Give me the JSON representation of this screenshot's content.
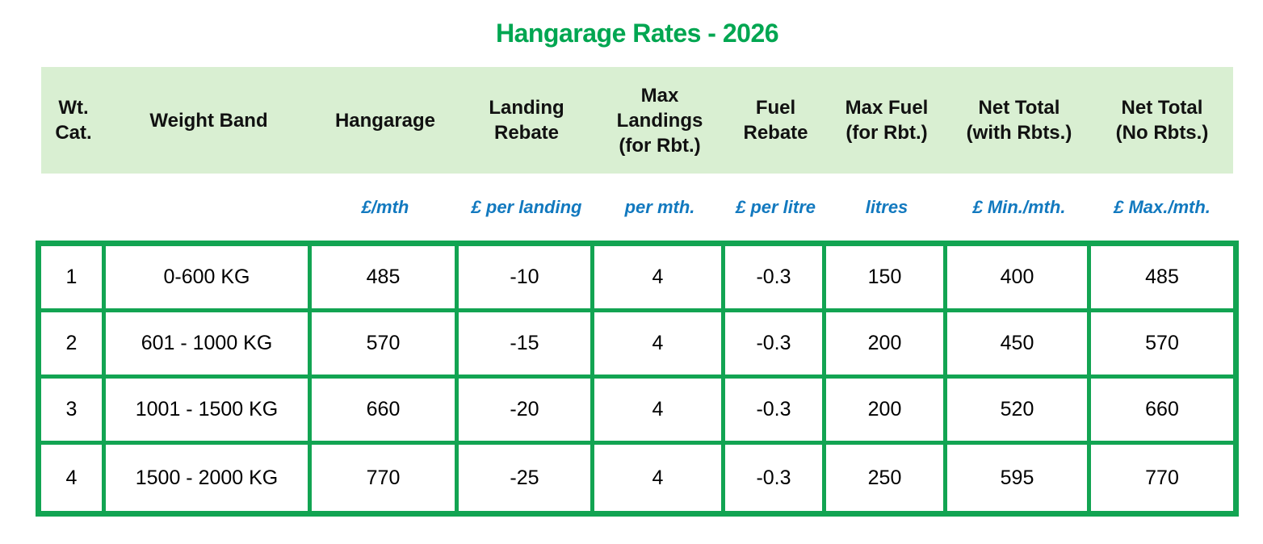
{
  "page": {
    "title": "Hangarage Rates - 2026"
  },
  "colors": {
    "title_green": "#00a651",
    "header_band_green": "#d9efd2",
    "table_border_green": "#12a452",
    "units_blue": "#1279bf",
    "text": "#000000"
  },
  "table": {
    "headers": [
      "Wt.\nCat.",
      "Weight Band",
      "Hangarage",
      "Landing\nRebate",
      "Max\nLandings\n(for Rbt.)",
      "Fuel\nRebate",
      "Max Fuel\n(for Rbt.)",
      "Net Total\n(with Rbts.)",
      "Net Total\n(No Rbts.)"
    ],
    "units": [
      "",
      "",
      "£/mth",
      "£ per landing",
      "per mth.",
      "£ per litre",
      "litres",
      "£ Min./mth.",
      "£ Max./mth."
    ],
    "rows": [
      [
        "1",
        "0-600 KG",
        "485",
        "-10",
        "4",
        "-0.3",
        "150",
        "400",
        "485"
      ],
      [
        "2",
        "601 - 1000 KG",
        "570",
        "-15",
        "4",
        "-0.3",
        "200",
        "450",
        "570"
      ],
      [
        "3",
        "1001 - 1500 KG",
        "660",
        "-20",
        "4",
        "-0.3",
        "200",
        "520",
        "660"
      ],
      [
        "4",
        "1500 - 2000 KG",
        "770",
        "-25",
        "4",
        "-0.3",
        "250",
        "595",
        "770"
      ]
    ]
  }
}
